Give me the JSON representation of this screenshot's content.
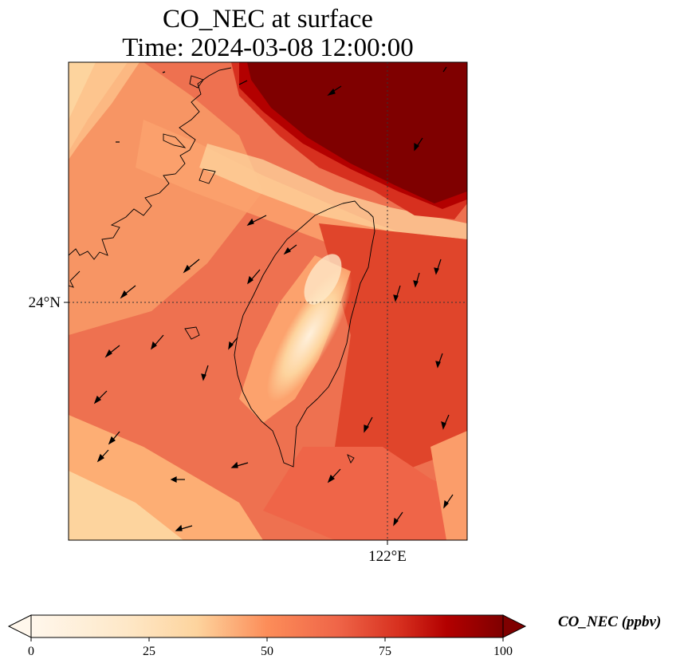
{
  "title": {
    "line1": "CO_NEC at surface",
    "line2": "Time: 2024-03-08 12:00:00"
  },
  "map": {
    "lat_label": "24°N",
    "lon_label": "122°E",
    "gridlines": "dotted",
    "features": [
      "Taiwan coastline",
      "Fujian coastline",
      "wind vectors"
    ]
  },
  "colorbar": {
    "label": "CO_NEC (ppbv)",
    "ticks": [
      "0",
      "25",
      "50",
      "75",
      "100"
    ],
    "min": 0,
    "max": 100,
    "extend": "both",
    "colormap": "OrRd",
    "colors": [
      "#fff7ec",
      "#fdd49e",
      "#fc8d59",
      "#d7301f",
      "#b30000",
      "#7f0000"
    ]
  }
}
